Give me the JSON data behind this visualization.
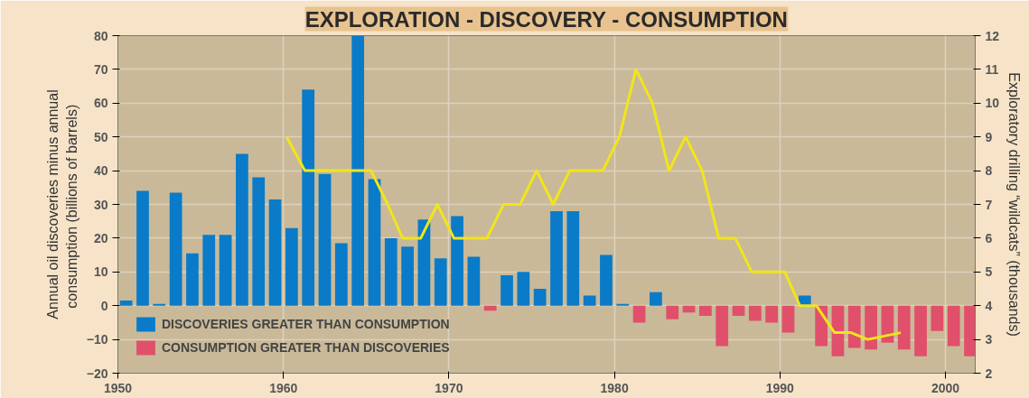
{
  "chart_data": {
    "type": "bar",
    "title": "EXPLORATION - DISCOVERY - CONSUMPTION",
    "ylabel": "Annual oil discoveries minus annual\nconsumption  (billions of barrels)",
    "y2label": "Exploratory drilling “wildcats” (thousands)",
    "x": [
      1950.5,
      1951.5,
      1952.5,
      1953.5,
      1954.5,
      1955.5,
      1956.5,
      1957.5,
      1958.5,
      1959.5,
      1960.5,
      1961.5,
      1962.5,
      1963.5,
      1964.5,
      1965.5,
      1966.5,
      1967.5,
      1968.5,
      1969.5,
      1970.5,
      1971.5,
      1972.5,
      1973.5,
      1974.5,
      1975.5,
      1976.5,
      1977.5,
      1978.5,
      1979.5,
      1980.5,
      1981.5,
      1982.5,
      1983.5,
      1984.5,
      1985.5,
      1986.5,
      1987.5,
      1988.5,
      1989.5,
      1990.5,
      1991.5,
      1992.5,
      1993.5,
      1994.5,
      1995.5,
      1996.5,
      1997.5,
      1998.5,
      1999.5,
      2000.5,
      2001.5
    ],
    "series": [
      {
        "name": "DISCOVERIES GREATER THAN CONSUMPTION",
        "color": "#0a7bc8",
        "values": [
          1.5,
          34,
          0.5,
          33.5,
          15.5,
          21,
          21,
          45,
          38,
          31.5,
          23,
          64,
          39,
          18.5,
          80,
          37.5,
          20,
          17.5,
          25.5,
          14,
          26.5,
          14.5,
          null,
          9,
          10,
          5,
          28,
          28,
          3,
          15,
          0.5,
          null,
          4,
          null,
          null,
          null,
          null,
          null,
          null,
          null,
          null,
          3,
          null,
          null,
          null,
          null,
          null,
          null,
          null,
          null,
          null,
          null
        ]
      },
      {
        "name": "CONSUMPTION GREATER THAN DISCOVERIES",
        "color": "#e0506a",
        "values": [
          null,
          null,
          null,
          null,
          null,
          null,
          null,
          null,
          null,
          null,
          null,
          null,
          null,
          null,
          null,
          null,
          null,
          null,
          null,
          null,
          null,
          null,
          -1.5,
          null,
          null,
          null,
          null,
          null,
          null,
          null,
          null,
          -5,
          null,
          -4,
          -2,
          -3,
          -12,
          -3,
          -4.5,
          -5,
          -8,
          null,
          -12,
          -15,
          -12.5,
          -13,
          -11,
          -13,
          -15,
          -7.5,
          -12,
          -15
        ]
      },
      {
        "type": "line",
        "axis": "y2",
        "color": "#f2e51a",
        "x": [
          1960.2,
          1961.3,
          1962.3,
          1963.3,
          1964.3,
          1965.3,
          1966.3,
          1967.2,
          1968.3,
          1969.3,
          1970.3,
          1971.3,
          1972.3,
          1973.3,
          1974.3,
          1975.3,
          1976.3,
          1977.3,
          1978.3,
          1979.3,
          1980.3,
          1981.3,
          1982.3,
          1983.3,
          1984.3,
          1985.3,
          1986.3,
          1987.3,
          1988.3,
          1989.3,
          1990.3,
          1991.2,
          1992.2,
          1993.3,
          1994.3,
          1995.3,
          1996.3,
          1997.3
        ],
        "values": [
          9,
          8,
          8,
          8,
          8,
          8,
          7,
          6,
          6,
          7,
          6,
          6,
          6,
          7,
          7,
          8,
          7,
          8,
          8,
          8,
          9,
          11,
          10,
          8,
          9,
          8,
          6,
          6,
          5,
          5,
          5,
          4,
          4,
          3.2,
          3.2,
          3.0,
          3.1,
          3.2
        ]
      }
    ],
    "xlim": [
      1950,
      2001.8
    ],
    "xticks": [
      1950,
      1960,
      1970,
      1980,
      1990,
      2000
    ],
    "ylim": [
      -20,
      80
    ],
    "yticks": [
      -20,
      -10,
      0,
      10,
      20,
      30,
      40,
      50,
      60,
      70,
      80
    ],
    "y2lim": [
      2,
      12
    ],
    "y2ticks": [
      2,
      3,
      4,
      5,
      6,
      7,
      8,
      9,
      10,
      11,
      12
    ],
    "grid": true,
    "legend": "bottom left",
    "line_style": "solid"
  }
}
